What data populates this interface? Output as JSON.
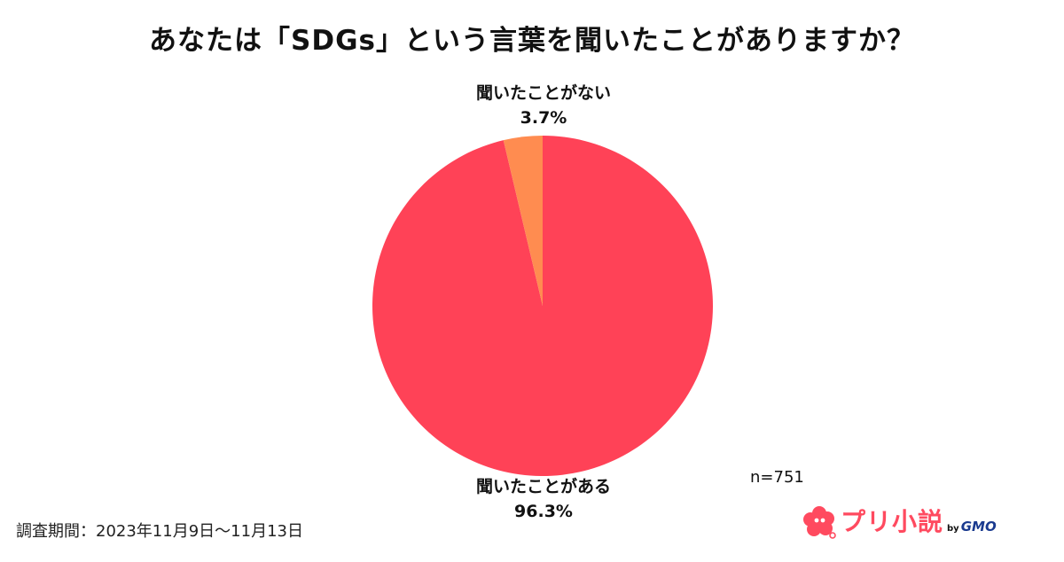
{
  "title": "あなたは「SDGs」という言葉を聞いたことがありますか？",
  "chart_data": {
    "type": "pie",
    "title": "あなたは「SDGs」という言葉を聞いたことがありますか？",
    "start_angle": "12 o'clock, clockwise",
    "slices": [
      {
        "label": "聞いたことがある",
        "value": 96.3,
        "value_label": "96.3%",
        "color": "#ff4257"
      },
      {
        "label": "聞いたことがない",
        "value": 3.7,
        "value_label": "3.7%",
        "color": "#ff8c50"
      }
    ]
  },
  "sample_size": "n=751",
  "survey_period": "調査期間：2023年11月9日〜11月13日",
  "logo": {
    "brand": "プリ小説",
    "by": "by",
    "company": "GMO",
    "brand_color": "#ff4a5f",
    "mark_icon": "flower-chat-bubble-icon"
  }
}
